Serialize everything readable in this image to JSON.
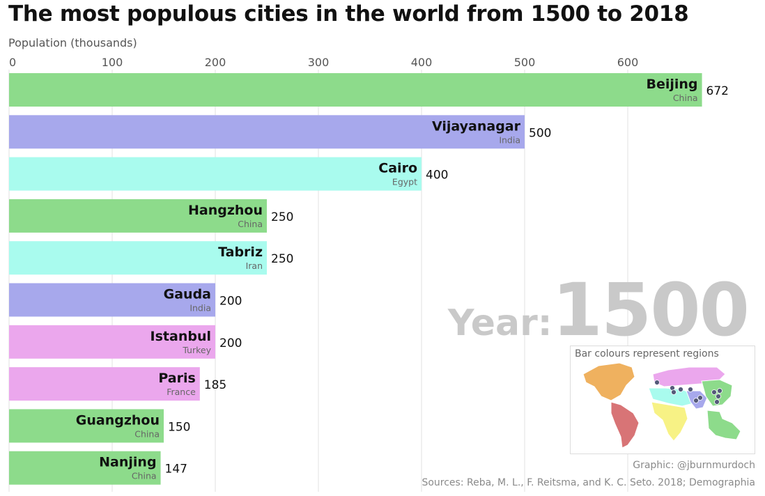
{
  "title": "The most populous cities in the world from 1500 to 2018",
  "year_prefix": "Year:",
  "year_value": "1500",
  "legend_title": "Bar colours represent regions",
  "credit": "Graphic: @jburnmurdoch",
  "sources": "Sources: Reba, M. L., F. Reitsma, and K. C. Seto. 2018; Demographia",
  "region_colors": {
    "East Asia": "#8ddb8b",
    "South Asia": "#a7a8ec",
    "Middle East": "#a9fbee",
    "Europe": "#eba7ed",
    "Africa": "#f7f285",
    "North America": "#efb15f",
    "Latin America": "#d87476",
    "Oceania": "#8ddb8b"
  },
  "chart_data": {
    "type": "bar",
    "orientation": "horizontal",
    "title": "The most populous cities in the world from 1500 to 2018",
    "xlabel": "Population (thousands)",
    "ylabel": "",
    "xlim": [
      0,
      672
    ],
    "x_ticks": [
      0,
      100,
      200,
      300,
      400,
      500,
      600
    ],
    "grid": true,
    "legend_position": "bottom-right",
    "year": 1500,
    "bars": [
      {
        "city": "Beijing",
        "country": "China",
        "value": 672,
        "color": "#8ddb8b"
      },
      {
        "city": "Vijayanagar",
        "country": "India",
        "value": 500,
        "color": "#a7a8ec"
      },
      {
        "city": "Cairo",
        "country": "Egypt",
        "value": 400,
        "color": "#a9fbee"
      },
      {
        "city": "Hangzhou",
        "country": "China",
        "value": 250,
        "color": "#8ddb8b"
      },
      {
        "city": "Tabriz",
        "country": "Iran",
        "value": 250,
        "color": "#a9fbee"
      },
      {
        "city": "Gauda",
        "country": "India",
        "value": 200,
        "color": "#a7a8ec"
      },
      {
        "city": "Istanbul",
        "country": "Turkey",
        "value": 200,
        "color": "#eba7ed"
      },
      {
        "city": "Paris",
        "country": "France",
        "value": 185,
        "color": "#eba7ed"
      },
      {
        "city": "Guangzhou",
        "country": "China",
        "value": 150,
        "color": "#8ddb8b"
      },
      {
        "city": "Nanjing",
        "country": "China",
        "value": 147,
        "color": "#8ddb8b"
      }
    ]
  }
}
